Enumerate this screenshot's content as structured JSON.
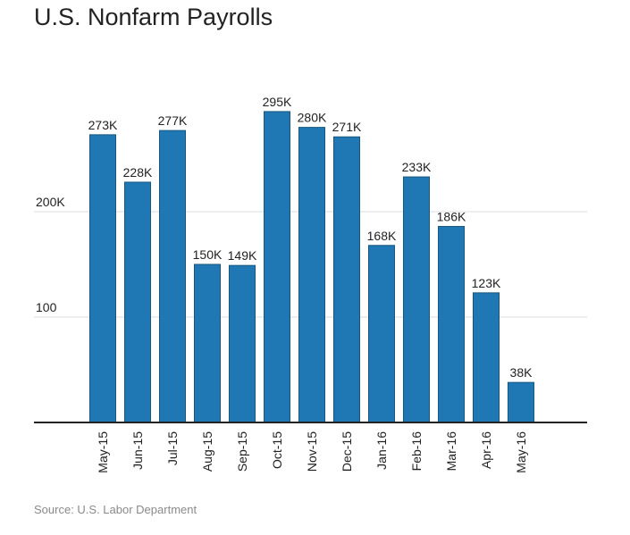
{
  "chart_data": {
    "type": "bar",
    "title": "U.S. Nonfarm Payrolls",
    "source": "Source: U.S. Labor Department",
    "xlabel": "",
    "ylabel": "",
    "categories": [
      "May-15",
      "Jun-15",
      "Jul-15",
      "Aug-15",
      "Sep-15",
      "Oct-15",
      "Nov-15",
      "Dec-15",
      "Jan-16",
      "Feb-16",
      "Mar-16",
      "Apr-16",
      "May-16"
    ],
    "values": [
      273,
      228,
      277,
      150,
      149,
      295,
      280,
      271,
      168,
      233,
      186,
      123,
      38
    ],
    "data_labels": [
      "273K",
      "228K",
      "277K",
      "150K",
      "149K",
      "295K",
      "280K",
      "271K",
      "168K",
      "233K",
      "186K",
      "123K",
      "38K"
    ],
    "y_ticks": [
      {
        "value": 100,
        "label": "100"
      },
      {
        "value": 200,
        "label": "200K"
      }
    ],
    "ylim": [
      0,
      300
    ],
    "grid": true,
    "legend": "none",
    "colors": {
      "bar": "#1F77B4",
      "bar_edge": "#17577F",
      "grid": "#DDDDDD",
      "axis": "#222222"
    }
  }
}
